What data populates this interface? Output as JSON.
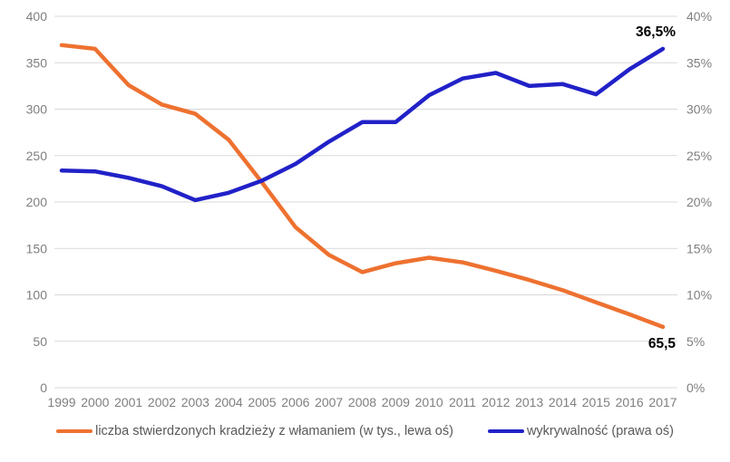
{
  "chart_data": {
    "type": "line",
    "title": "",
    "categories": [
      "1999",
      "2000",
      "2001",
      "2002",
      "2003",
      "2004",
      "2005",
      "2006",
      "2007",
      "2008",
      "2009",
      "2010",
      "2011",
      "2012",
      "2013",
      "2014",
      "2015",
      "2016",
      "2017"
    ],
    "series": [
      {
        "name": "liczba stwierdzonych kradzieży z włamaniem (w tys., lewa oś)",
        "axis": "left",
        "color": "#EE7130",
        "values": [
          369,
          365,
          326,
          305,
          295,
          267,
          221,
          173,
          143,
          124.5,
          134,
          140,
          135,
          126,
          116,
          105,
          92,
          79,
          65.5
        ]
      },
      {
        "name": "wykrywalność (prawa oś)",
        "axis": "right",
        "color": "#2121C8",
        "values": [
          23.4,
          23.3,
          22.6,
          21.7,
          20.2,
          21.0,
          22.3,
          24.1,
          26.5,
          28.6,
          28.6,
          31.5,
          33.3,
          33.9,
          32.5,
          32.7,
          31.6,
          34.3,
          36.5
        ]
      }
    ],
    "left_axis": {
      "min": 0,
      "max": 400,
      "step": 50,
      "tick_labels": [
        "0",
        "50",
        "100",
        "150",
        "200",
        "250",
        "300",
        "350",
        "400"
      ]
    },
    "right_axis": {
      "min": 0,
      "max": 40,
      "step": 5,
      "suffix": "%",
      "tick_labels": [
        "0%",
        "5%",
        "10%",
        "15%",
        "20%",
        "25%",
        "30%",
        "35%",
        "40%"
      ]
    },
    "annotations": [
      {
        "text": "36,5%",
        "series": 1,
        "point": 18,
        "placement": "above"
      },
      {
        "text": "65,5",
        "series": 0,
        "point": 18,
        "placement": "below"
      }
    ],
    "grid": true,
    "legend_position": "bottom"
  },
  "style_colors": {
    "gridline": "#D9D9D9",
    "axis_label": "#7F7F7F",
    "annotation": "#000000",
    "legend_text": "#595959",
    "background": "#FFFFFF"
  }
}
